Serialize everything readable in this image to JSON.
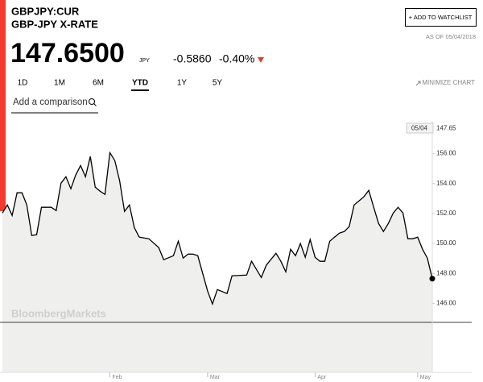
{
  "header": {
    "symbol": "GBPJPY:CUR",
    "name": "GBP-JPY X-RATE",
    "watchlist_button": "+ ADD TO WATCHLIST",
    "as_of": "AS OF 05/04/2018",
    "price": "147.6500",
    "currency": "JPY",
    "change": "-0.5860",
    "change_pct": "-0.40%"
  },
  "tabs": [
    "1D",
    "1M",
    "6M",
    "YTD",
    "1Y",
    "5Y"
  ],
  "active_tab": 3,
  "minimize": "MINIMIZE CHART",
  "comparison": "Add a comparison",
  "watermark": "BloombergMarkets",
  "chart_data": {
    "type": "line",
    "color": "#000000",
    "fill": "#efefed",
    "x": [
      0,
      1,
      2,
      3,
      4,
      5,
      6,
      7,
      8,
      10,
      11,
      12,
      13,
      14,
      15,
      16,
      17,
      18,
      19,
      20,
      21,
      22,
      23,
      24,
      25,
      26,
      27,
      28,
      30,
      32,
      33,
      35,
      36,
      37,
      38,
      39,
      40,
      42,
      43,
      44,
      46,
      47,
      50,
      51,
      52,
      53,
      54,
      56,
      57,
      58,
      59,
      60,
      61,
      62,
      63,
      64,
      65,
      66,
      67,
      68,
      69,
      70,
      71,
      72,
      73,
      74,
      75,
      76,
      77,
      78,
      79,
      80,
      81,
      82,
      83,
      84,
      85,
      86,
      87,
      88
    ],
    "values": [
      152.03,
      152.57,
      151.87,
      153.38,
      153.38,
      152.57,
      150.53,
      150.58,
      152.41,
      152.41,
      152.19,
      154.02,
      154.45,
      153.65,
      154.56,
      155.2,
      154.45,
      155.8,
      153.75,
      153.48,
      153.27,
      156.06,
      155.53,
      154.18,
      152.14,
      152.57,
      151.06,
      150.42,
      150.31,
      149.72,
      148.91,
      149.18,
      150.15,
      149.02,
      149.29,
      149.29,
      149.18,
      146.82,
      145.96,
      146.92,
      146.66,
      147.84,
      147.89,
      148.81,
      148.27,
      147.73,
      148.54,
      149.34,
      148.81,
      148.11,
      149.61,
      149.18,
      149.99,
      149.08,
      150.26,
      149.08,
      148.81,
      148.81,
      150.15,
      150.42,
      150.69,
      150.8,
      151.12,
      152.57,
      152.84,
      153.11,
      153.54,
      152.41,
      151.33,
      150.8,
      151.33,
      152.03,
      152.41,
      152.03,
      150.31,
      150.31,
      150.42,
      149.61,
      149.02,
      147.65
    ],
    "xlim": [
      0,
      88
    ],
    "xticks": [
      {
        "value": 22,
        "label": "Feb"
      },
      {
        "value": 42,
        "label": "Mar"
      },
      {
        "value": 64,
        "label": "Apr"
      },
      {
        "value": 85,
        "label": "May"
      }
    ],
    "ylim": [
      141.4,
      158.3
    ],
    "yticks": [
      {
        "value": 146,
        "label": "146.00"
      },
      {
        "value": 148,
        "label": "148.00"
      },
      {
        "value": 150,
        "label": "150.00"
      },
      {
        "value": 152,
        "label": "152.00"
      },
      {
        "value": 154,
        "label": "154.00"
      },
      {
        "value": 156,
        "label": "156.00"
      }
    ],
    "end_label": {
      "date": "05/04",
      "value": 147.65
    }
  }
}
